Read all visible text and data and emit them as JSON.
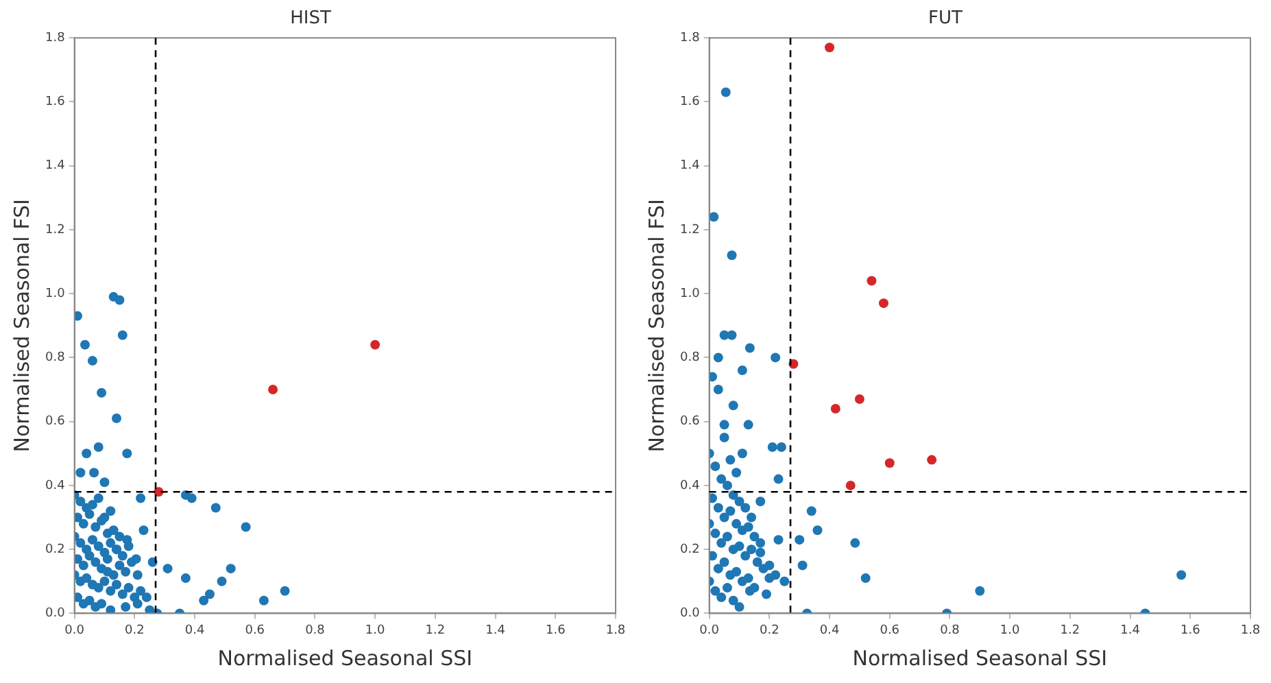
{
  "chart_data": [
    {
      "type": "scatter",
      "title": "HIST",
      "xlabel": "Normalised Seasonal SSI",
      "ylabel": "Normalised Seasonal FSI",
      "grid": false,
      "legend": false,
      "marker": "circle",
      "xlim": [
        0,
        1.8
      ],
      "ylim": [
        0,
        1.8
      ],
      "xticks": [
        {
          "value": 0,
          "label": "0.0"
        },
        {
          "value": 0.2,
          "label": "0.2"
        },
        {
          "value": 0.4,
          "label": "0.4"
        },
        {
          "value": 0.6,
          "label": "0.6"
        },
        {
          "value": 0.8,
          "label": "0.8"
        },
        {
          "value": 1,
          "label": "1.0"
        },
        {
          "value": 1.2,
          "label": "1.2"
        },
        {
          "value": 1.4,
          "label": "1.4"
        },
        {
          "value": 1.6,
          "label": "1.6"
        },
        {
          "value": 1.8,
          "label": "1.8"
        }
      ],
      "yticks": [
        {
          "value": 0,
          "label": "0.0"
        },
        {
          "value": 0.2,
          "label": "0.2"
        },
        {
          "value": 0.4,
          "label": "0.4"
        },
        {
          "value": 0.6,
          "label": "0.6"
        },
        {
          "value": 0.8,
          "label": "0.8"
        },
        {
          "value": 1,
          "label": "1.0"
        },
        {
          "value": 1.2,
          "label": "1.2"
        },
        {
          "value": 1.4,
          "label": "1.4"
        },
        {
          "value": 1.6,
          "label": "1.6"
        },
        {
          "value": 1.8,
          "label": "1.8"
        }
      ],
      "ref_lines": [
        {
          "axis": "x",
          "value": 0.27,
          "line_style": "dashed",
          "color": "#000000"
        },
        {
          "axis": "y",
          "value": 0.38,
          "line_style": "dashed",
          "color": "#000000"
        }
      ],
      "series": [
        {
          "color": "#1f77b4",
          "x": [
            0.01,
            0.035,
            0.06,
            0.09,
            0.14,
            0.13,
            0.15,
            0.16,
            0.175,
            0.04,
            0.08,
            0.065,
            0.02,
            0.1,
            0.22,
            0.39,
            0.37,
            0.47,
            0.57,
            0.23,
            0.52,
            0.49,
            0.45,
            0.43,
            0.37,
            0.31,
            0.26,
            0.63,
            0.7,
            0.35,
            0.275,
            0.175,
            0.14,
            0.205,
            0.11,
            0.0,
            0.02,
            0.04,
            0.06,
            0.08,
            0.1,
            0.12,
            0.01,
            0.03,
            0.05,
            0.07,
            0.09,
            0.11,
            0.13,
            0.15,
            0.0,
            0.02,
            0.04,
            0.06,
            0.08,
            0.1,
            0.12,
            0.14,
            0.16,
            0.18,
            0.01,
            0.03,
            0.05,
            0.07,
            0.09,
            0.11,
            0.13,
            0.15,
            0.17,
            0.19,
            0.21,
            0.0,
            0.02,
            0.04,
            0.06,
            0.08,
            0.1,
            0.12,
            0.14,
            0.16,
            0.18,
            0.2,
            0.22,
            0.24,
            0.01,
            0.03,
            0.05,
            0.07,
            0.09,
            0.12,
            0.17,
            0.21,
            0.25
          ],
          "values": [
            0.93,
            0.84,
            0.79,
            0.69,
            0.61,
            0.99,
            0.98,
            0.87,
            0.5,
            0.5,
            0.52,
            0.44,
            0.44,
            0.41,
            0.36,
            0.36,
            0.37,
            0.33,
            0.27,
            0.26,
            0.14,
            0.1,
            0.06,
            0.04,
            0.11,
            0.14,
            0.16,
            0.04,
            0.07,
            0.0,
            0.0,
            0.23,
            0.2,
            0.17,
            0.13,
            0.37,
            0.35,
            0.33,
            0.34,
            0.36,
            0.3,
            0.32,
            0.3,
            0.28,
            0.31,
            0.27,
            0.29,
            0.25,
            0.26,
            0.24,
            0.24,
            0.22,
            0.2,
            0.23,
            0.21,
            0.19,
            0.22,
            0.2,
            0.18,
            0.21,
            0.17,
            0.15,
            0.18,
            0.16,
            0.14,
            0.17,
            0.12,
            0.15,
            0.13,
            0.16,
            0.12,
            0.12,
            0.1,
            0.11,
            0.09,
            0.08,
            0.1,
            0.07,
            0.09,
            0.06,
            0.08,
            0.05,
            0.07,
            0.05,
            0.05,
            0.03,
            0.04,
            0.02,
            0.03,
            0.01,
            0.02,
            0.03,
            0.01
          ]
        },
        {
          "color": "#d62728",
          "x": [
            0.28,
            0.66,
            1.0
          ],
          "values": [
            0.38,
            0.7,
            0.84
          ]
        }
      ]
    },
    {
      "type": "scatter",
      "title": "FUT",
      "xlabel": "Normalised Seasonal SSI",
      "ylabel": "Normalised Seasonal FSI",
      "grid": false,
      "legend": false,
      "marker": "circle",
      "xlim": [
        0,
        1.8
      ],
      "ylim": [
        0,
        1.8
      ],
      "xticks": [
        {
          "value": 0,
          "label": "0.0"
        },
        {
          "value": 0.2,
          "label": "0.2"
        },
        {
          "value": 0.4,
          "label": "0.4"
        },
        {
          "value": 0.6,
          "label": "0.6"
        },
        {
          "value": 0.8,
          "label": "0.8"
        },
        {
          "value": 1,
          "label": "1.0"
        },
        {
          "value": 1.2,
          "label": "1.2"
        },
        {
          "value": 1.4,
          "label": "1.4"
        },
        {
          "value": 1.6,
          "label": "1.6"
        },
        {
          "value": 1.8,
          "label": "1.8"
        }
      ],
      "yticks": [
        {
          "value": 0,
          "label": "0.0"
        },
        {
          "value": 0.2,
          "label": "0.2"
        },
        {
          "value": 0.4,
          "label": "0.4"
        },
        {
          "value": 0.6,
          "label": "0.6"
        },
        {
          "value": 0.8,
          "label": "0.8"
        },
        {
          "value": 1,
          "label": "1.0"
        },
        {
          "value": 1.2,
          "label": "1.2"
        },
        {
          "value": 1.4,
          "label": "1.4"
        },
        {
          "value": 1.6,
          "label": "1.6"
        },
        {
          "value": 1.8,
          "label": "1.8"
        }
      ],
      "ref_lines": [
        {
          "axis": "x",
          "value": 0.27,
          "line_style": "dashed",
          "color": "#000000"
        },
        {
          "axis": "y",
          "value": 0.38,
          "line_style": "dashed",
          "color": "#000000"
        }
      ],
      "series": [
        {
          "color": "#1f77b4",
          "x": [
            0.055,
            0.015,
            0.075,
            0.05,
            0.075,
            0.135,
            0.22,
            0.03,
            0.11,
            0.08,
            0.13,
            0.05,
            0.21,
            0.24,
            0.23,
            0.17,
            0.34,
            0.36,
            0.3,
            0.485,
            0.52,
            0.325,
            0.31,
            0.23,
            0.17,
            0.2,
            0.135,
            0.9,
            0.79,
            1.45,
            1.57,
            0.01,
            0.03,
            0.05,
            0.07,
            0.09,
            0.11,
            0.0,
            0.02,
            0.04,
            0.06,
            0.08,
            0.1,
            0.12,
            0.14,
            0.01,
            0.03,
            0.05,
            0.07,
            0.09,
            0.11,
            0.13,
            0.15,
            0.17,
            0.0,
            0.02,
            0.04,
            0.06,
            0.08,
            0.1,
            0.12,
            0.14,
            0.16,
            0.18,
            0.2,
            0.22,
            0.01,
            0.03,
            0.05,
            0.07,
            0.09,
            0.11,
            0.13,
            0.15,
            0.19,
            0.25,
            0.0,
            0.02,
            0.04,
            0.06,
            0.08,
            0.1
          ],
          "values": [
            1.63,
            1.24,
            1.12,
            0.87,
            0.87,
            0.83,
            0.8,
            0.8,
            0.76,
            0.65,
            0.59,
            0.59,
            0.52,
            0.52,
            0.42,
            0.35,
            0.32,
            0.26,
            0.23,
            0.22,
            0.11,
            0.0,
            0.15,
            0.23,
            0.19,
            0.11,
            0.07,
            0.07,
            0.0,
            0.0,
            0.12,
            0.74,
            0.7,
            0.55,
            0.48,
            0.44,
            0.5,
            0.5,
            0.46,
            0.42,
            0.4,
            0.37,
            0.35,
            0.33,
            0.3,
            0.36,
            0.33,
            0.3,
            0.32,
            0.28,
            0.26,
            0.27,
            0.24,
            0.22,
            0.28,
            0.25,
            0.22,
            0.24,
            0.2,
            0.21,
            0.18,
            0.2,
            0.16,
            0.14,
            0.15,
            0.12,
            0.18,
            0.14,
            0.16,
            0.12,
            0.13,
            0.1,
            0.11,
            0.08,
            0.06,
            0.1,
            0.1,
            0.07,
            0.05,
            0.08,
            0.04,
            0.02
          ]
        },
        {
          "color": "#d62728",
          "x": [
            0.4,
            0.54,
            0.58,
            0.28,
            0.42,
            0.5,
            0.6,
            0.74,
            0.47
          ],
          "values": [
            1.77,
            1.04,
            0.97,
            0.78,
            0.64,
            0.67,
            0.47,
            0.48,
            0.4
          ]
        }
      ]
    }
  ]
}
